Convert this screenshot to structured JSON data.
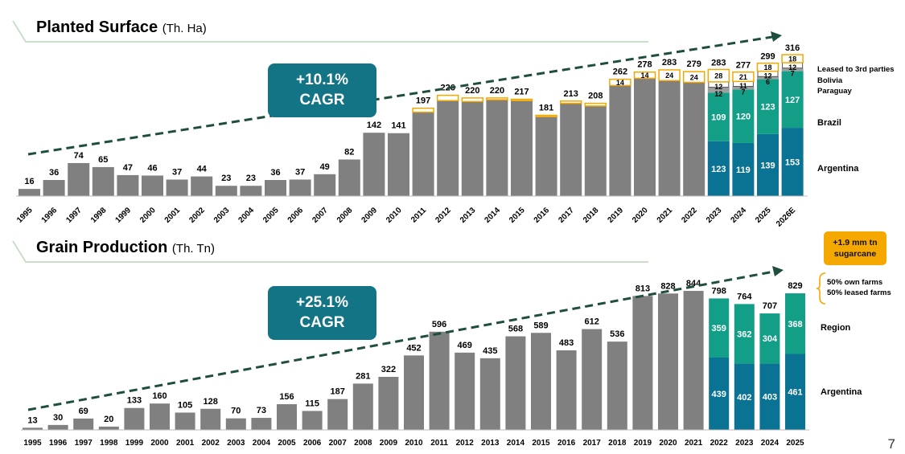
{
  "titles": {
    "planted_title": "Planted Surface",
    "planted_unit": "(Th. Ha)",
    "grain_title": "Grain Production",
    "grain_unit": "(Th. Tn)"
  },
  "cagr": {
    "planted_value": "+10.1%",
    "planted_label": "CAGR",
    "grain_value": "+25.1%",
    "grain_label": "CAGR"
  },
  "callout": {
    "line1": "+1.9 mm tn",
    "line2": "sugarcane"
  },
  "page_number": "7",
  "colors": {
    "gray": "#808080",
    "argentina": "#0A7293",
    "brazil": "#139E88",
    "paraguay": "#9EA0A0",
    "bolivia": "#FFFFFF",
    "leased": "#F5A800",
    "cagr_box": "#127485",
    "arrow": "#1F4E3D",
    "bracket": "#C9DFC9"
  },
  "chart_data": [
    {
      "type": "bar",
      "title": "Planted Surface (Th. Ha)",
      "categories": [
        "1995",
        "1996",
        "1997",
        "1998",
        "1999",
        "2000",
        "2001",
        "2002",
        "2003",
        "2004",
        "2005",
        "2006",
        "2007",
        "2008",
        "2009",
        "2010",
        "2011",
        "2012",
        "2013",
        "2014",
        "2015",
        "2016",
        "2017",
        "2018",
        "2019",
        "2020",
        "2021",
        "2022",
        "2023",
        "2024",
        "2025",
        "2026E"
      ],
      "totals": [
        16,
        36,
        74,
        65,
        47,
        46,
        37,
        44,
        23,
        23,
        36,
        37,
        49,
        82,
        142,
        141,
        197,
        226,
        220,
        220,
        217,
        181,
        213,
        208,
        262,
        278,
        283,
        279,
        283,
        277,
        299,
        316
      ],
      "series": [
        {
          "name": "Argentina",
          "values": [
            null,
            null,
            null,
            null,
            null,
            null,
            null,
            null,
            null,
            null,
            null,
            null,
            null,
            null,
            null,
            null,
            null,
            null,
            null,
            null,
            null,
            null,
            null,
            null,
            null,
            null,
            null,
            null,
            123,
            119,
            139,
            153
          ]
        },
        {
          "name": "Brazil",
          "values": [
            null,
            null,
            null,
            null,
            null,
            null,
            null,
            null,
            null,
            null,
            null,
            null,
            null,
            null,
            null,
            null,
            null,
            null,
            null,
            null,
            null,
            null,
            null,
            null,
            null,
            null,
            null,
            null,
            109,
            120,
            123,
            127
          ]
        },
        {
          "name": "Paraguay",
          "values": [
            null,
            null,
            null,
            null,
            null,
            null,
            null,
            null,
            null,
            null,
            null,
            null,
            null,
            null,
            null,
            null,
            null,
            null,
            null,
            null,
            null,
            null,
            null,
            null,
            null,
            null,
            null,
            null,
            12,
            7,
            6,
            7
          ]
        },
        {
          "name": "Bolivia",
          "values": [
            null,
            null,
            null,
            null,
            null,
            null,
            null,
            null,
            null,
            null,
            null,
            null,
            null,
            null,
            null,
            null,
            null,
            null,
            null,
            null,
            null,
            null,
            null,
            null,
            null,
            null,
            null,
            null,
            12,
            11,
            12,
            12
          ]
        },
        {
          "name": "Leased to 3rd parties",
          "values": [
            null,
            null,
            null,
            null,
            null,
            null,
            null,
            null,
            null,
            null,
            null,
            null,
            null,
            null,
            null,
            null,
            9,
            12,
            8,
            4,
            3,
            3,
            5,
            6,
            14,
            14,
            24,
            24,
            28,
            21,
            18,
            18
          ]
        }
      ],
      "labeled_leased": {
        "2019": "14",
        "2020": "14",
        "2021": "24",
        "2022": "24",
        "2023": "28",
        "2024": "21",
        "2025": "18",
        "2026E": "18"
      },
      "legend_labels": [
        "Leased to 3rd parties",
        "Bolivia",
        "Paraguay",
        "Brazil",
        "Argentina"
      ],
      "ylim": [
        0,
        330
      ],
      "annotation": "+10.1% CAGR"
    },
    {
      "type": "bar",
      "title": "Grain Production (Th. Tn)",
      "categories": [
        "1995",
        "1996",
        "1997",
        "1998",
        "1999",
        "2000",
        "2001",
        "2002",
        "2003",
        "2004",
        "2005",
        "2006",
        "2007",
        "2008",
        "2009",
        "2010",
        "2011",
        "2012",
        "2013",
        "2014",
        "2015",
        "2016",
        "2017",
        "2018",
        "2019",
        "2020",
        "2021",
        "2022",
        "2023",
        "2024",
        "2025"
      ],
      "totals": [
        13,
        30,
        69,
        20,
        133,
        160,
        105,
        128,
        70,
        73,
        156,
        115,
        187,
        281,
        322,
        452,
        596,
        469,
        435,
        568,
        589,
        483,
        612,
        536,
        813,
        828,
        844,
        798,
        764,
        707,
        829
      ],
      "series": [
        {
          "name": "Argentina",
          "values": [
            null,
            null,
            null,
            null,
            null,
            null,
            null,
            null,
            null,
            null,
            null,
            null,
            null,
            null,
            null,
            null,
            null,
            null,
            null,
            null,
            null,
            null,
            null,
            null,
            null,
            null,
            null,
            439,
            402,
            403,
            461
          ]
        },
        {
          "name": "Region",
          "values": [
            null,
            null,
            null,
            null,
            null,
            null,
            null,
            null,
            null,
            null,
            null,
            null,
            null,
            null,
            null,
            null,
            null,
            null,
            null,
            null,
            null,
            null,
            null,
            null,
            null,
            null,
            null,
            359,
            362,
            304,
            368
          ]
        }
      ],
      "legend_labels": [
        "Region",
        "Argentina"
      ],
      "side_note": [
        "50% own farms",
        "50% leased farms"
      ],
      "ylim": [
        0,
        900
      ],
      "annotation": "+25.1% CAGR"
    }
  ]
}
